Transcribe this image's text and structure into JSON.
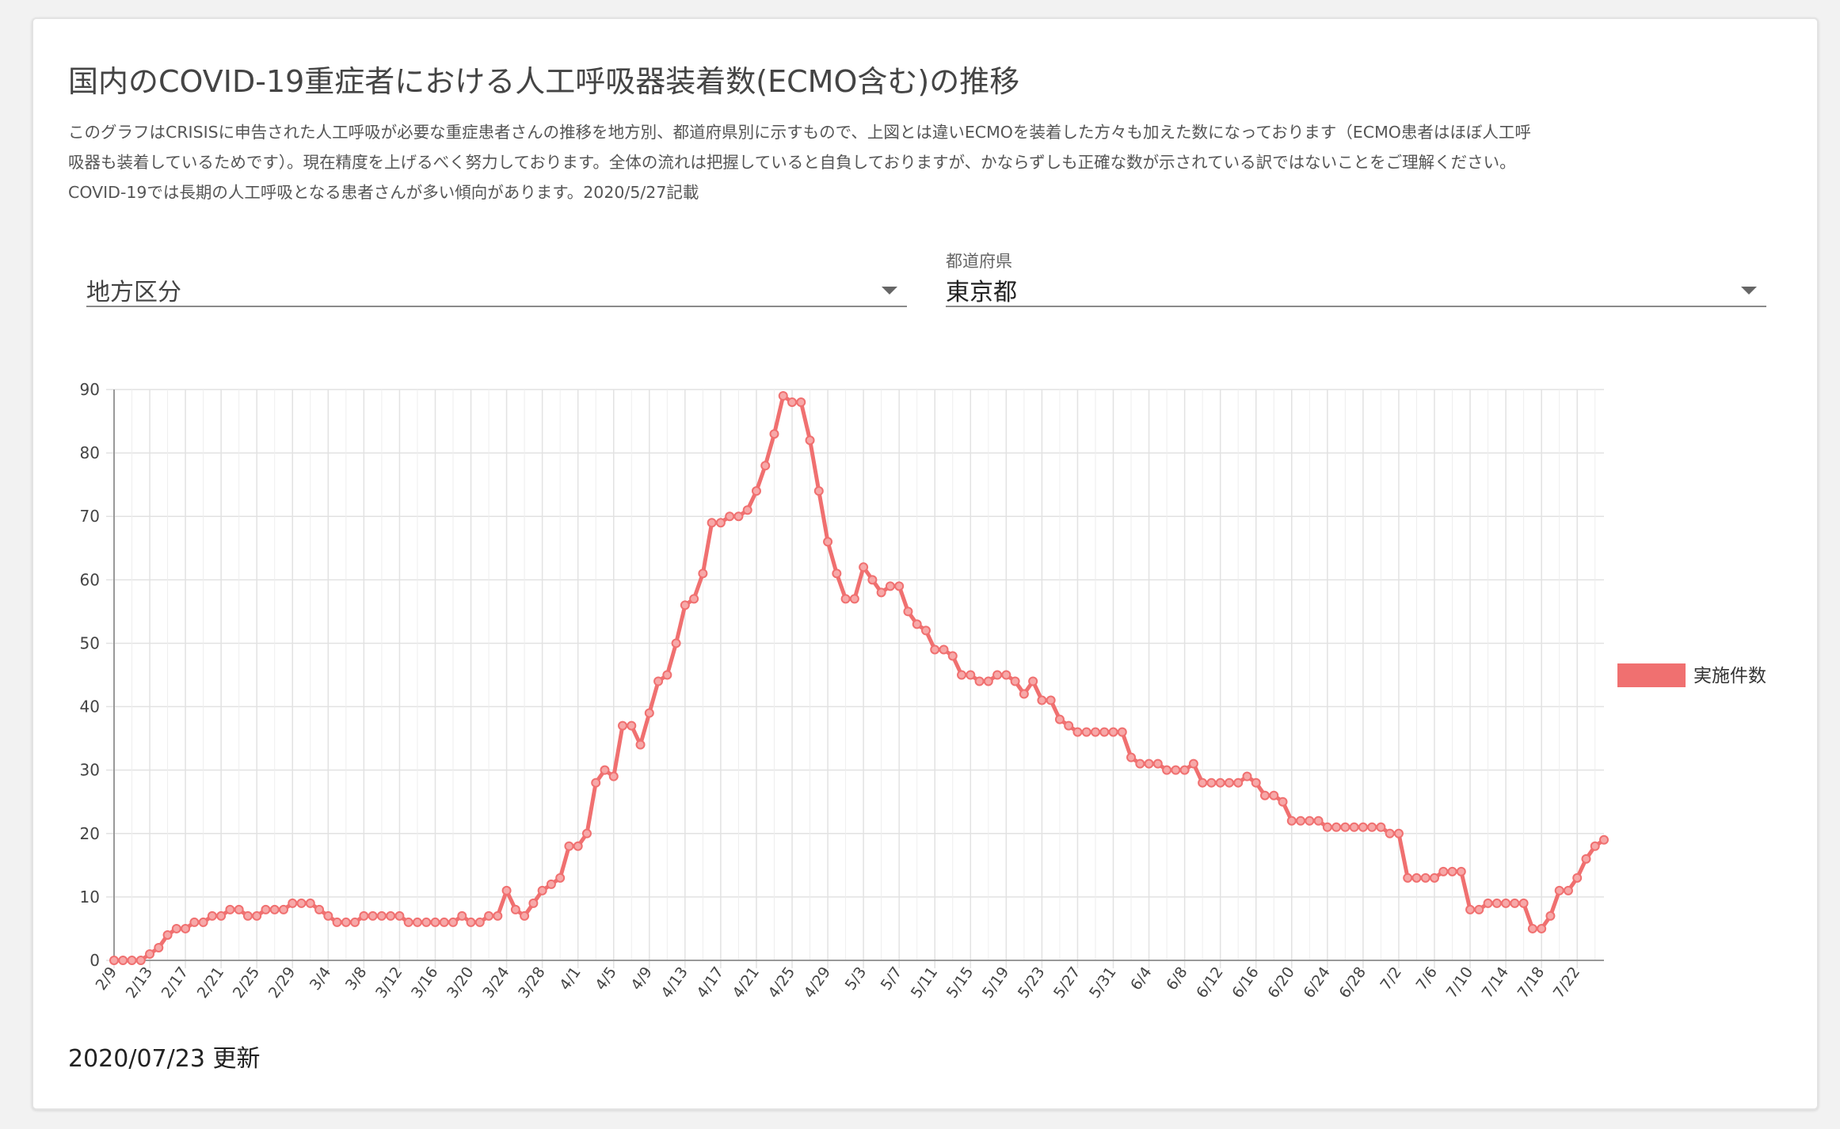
{
  "card": {
    "title": "国内のCOVID-19重症者における人工呼吸器装着数(ECMO含む)の推移",
    "description_lines": [
      "このグラフはCRISISに申告された人工呼吸が必要な重症患者さんの推移を地方別、都道府県別に示すもので、上図とは違いECMOを装着した方々も加えた数になっております（ECMO患者はほぼ人工呼",
      "吸器も装着しているためです）。現在精度を上げるべく努力しております。全体の流れは把握していると自負しておりますが、かならずしも正確な数が示されている訳ではないことをご理解ください。",
      "COVID-19では長期の人工呼吸となる患者さんが多い傾向があります。2020/5/27記載"
    ],
    "updated": "2020/07/23 更新"
  },
  "filters": {
    "region": {
      "placeholder": "地方区分",
      "value": ""
    },
    "prefecture": {
      "label": "都道府県",
      "value": "東京都"
    }
  },
  "colors": {
    "series": "#f07070",
    "grid": "#e2e2e2",
    "axis": "#999999",
    "tick_text": "#444444"
  },
  "chart_data": {
    "type": "line",
    "title": "",
    "xlabel": "",
    "ylabel": "",
    "ylim": [
      0,
      90
    ],
    "yticks": [
      0,
      10,
      20,
      30,
      40,
      50,
      60,
      70,
      80,
      90
    ],
    "grid": true,
    "legend_position": "right",
    "x_start": "2/9",
    "x_end": "7/22",
    "x_tick_labels": [
      "2/9",
      "2/13",
      "2/17",
      "2/21",
      "2/25",
      "2/29",
      "3/4",
      "3/8",
      "3/12",
      "3/16",
      "3/20",
      "3/24",
      "3/28",
      "4/1",
      "4/5",
      "4/9",
      "4/13",
      "4/17",
      "4/21",
      "4/25",
      "4/29",
      "5/3",
      "5/7",
      "5/11",
      "5/15",
      "5/19",
      "5/23",
      "5/27",
      "5/31",
      "6/4",
      "6/8",
      "6/12",
      "6/16",
      "6/20",
      "6/24",
      "6/28",
      "7/2",
      "7/6",
      "7/10",
      "7/14",
      "7/18",
      "7/22"
    ],
    "series": [
      {
        "name": "実施件数",
        "color": "#f07070",
        "values": [
          0,
          0,
          0,
          0,
          1,
          2,
          4,
          5,
          5,
          6,
          6,
          7,
          7,
          8,
          8,
          7,
          7,
          8,
          8,
          8,
          9,
          9,
          9,
          8,
          7,
          6,
          6,
          6,
          7,
          7,
          7,
          7,
          7,
          6,
          6,
          6,
          6,
          6,
          6,
          7,
          6,
          6,
          7,
          7,
          11,
          8,
          7,
          9,
          11,
          12,
          13,
          18,
          18,
          20,
          28,
          30,
          29,
          37,
          37,
          34,
          39,
          44,
          45,
          50,
          56,
          57,
          61,
          69,
          69,
          70,
          70,
          71,
          74,
          78,
          83,
          89,
          88,
          88,
          82,
          74,
          66,
          61,
          57,
          57,
          62,
          60,
          58,
          59,
          59,
          55,
          53,
          52,
          49,
          49,
          48,
          45,
          45,
          44,
          44,
          45,
          45,
          44,
          42,
          44,
          41,
          41,
          38,
          37,
          36,
          36,
          36,
          36,
          36,
          36,
          32,
          31,
          31,
          31,
          30,
          30,
          30,
          31,
          28,
          28,
          28,
          28,
          28,
          29,
          28,
          26,
          26,
          25,
          22,
          22,
          22,
          22,
          21,
          21,
          21,
          21,
          21,
          21,
          21,
          20,
          20,
          13,
          13,
          13,
          13,
          14,
          14,
          14,
          8,
          8,
          9,
          9,
          9,
          9,
          9,
          5,
          5,
          7,
          11,
          11,
          13,
          16,
          18,
          19
        ]
      }
    ]
  }
}
